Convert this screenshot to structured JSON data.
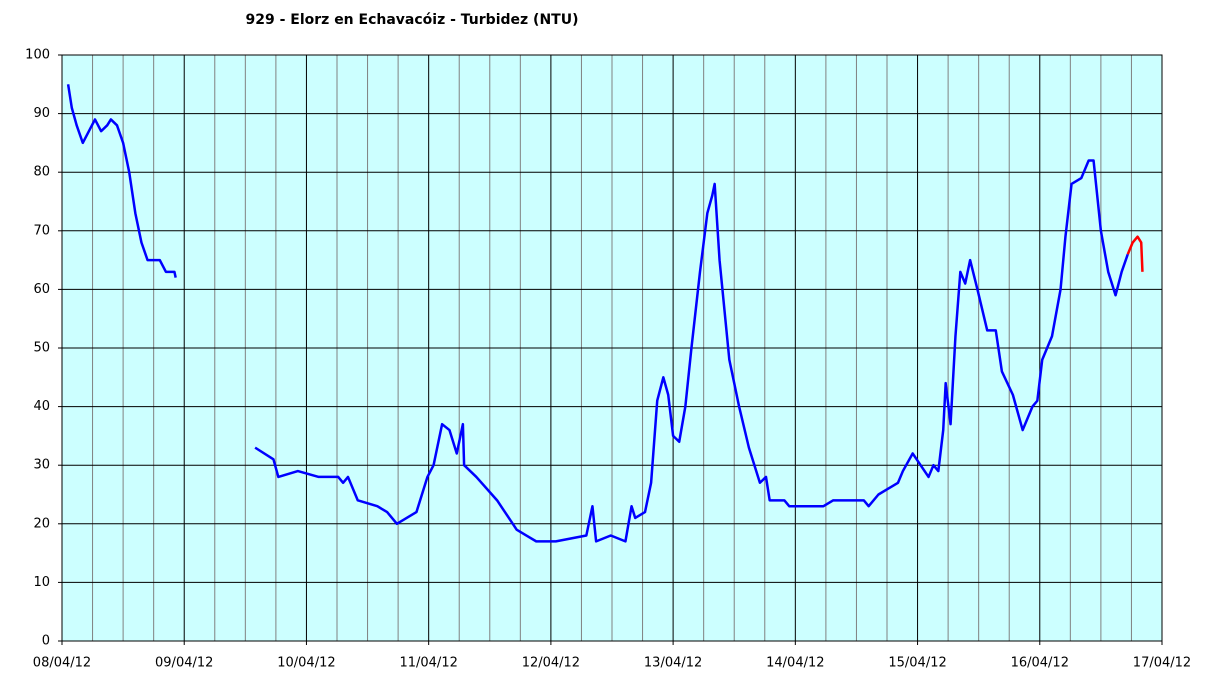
{
  "chart_data": {
    "type": "line",
    "title": "929 - Elorz en Echavacóiz - Turbidez (NTU)",
    "xlim": [
      0,
      9
    ],
    "xticks": [
      {
        "value": 0,
        "label": "08/04/12"
      },
      {
        "value": 1,
        "label": "09/04/12"
      },
      {
        "value": 2,
        "label": "10/04/12"
      },
      {
        "value": 3,
        "label": "11/04/12"
      },
      {
        "value": 4,
        "label": "12/04/12"
      },
      {
        "value": 5,
        "label": "13/04/12"
      },
      {
        "value": 6,
        "label": "14/04/12"
      },
      {
        "value": 7,
        "label": "15/04/12"
      },
      {
        "value": 8,
        "label": "16/04/12"
      },
      {
        "value": 9,
        "label": "17/04/12"
      }
    ],
    "ylim": [
      0,
      100
    ],
    "yticks": [
      0,
      10,
      20,
      30,
      40,
      50,
      60,
      70,
      80,
      90,
      100
    ],
    "grid": true,
    "background": "#ccffff",
    "series": [
      {
        "color": "#0000ff",
        "x": [
          0.05,
          0.08,
          0.12,
          0.17,
          0.22,
          0.27,
          0.32,
          0.37,
          0.4,
          0.45,
          0.5,
          0.55,
          0.6,
          0.65,
          0.7,
          0.8,
          0.85,
          0.92,
          0.93,
          1.2,
          1.58,
          1.73,
          1.77,
          1.93,
          2.1,
          2.26,
          2.3,
          2.34,
          2.42,
          2.58,
          2.66,
          2.74,
          2.82,
          2.9,
          2.99,
          3.04,
          3.11,
          3.17,
          3.23,
          3.28,
          3.29,
          3.39,
          3.56,
          3.72,
          3.8,
          3.88,
          4.04,
          4.29,
          4.34,
          4.37,
          4.49,
          4.61,
          4.66,
          4.69,
          4.77,
          4.82,
          4.87,
          4.92,
          4.96,
          5.0,
          5.05,
          5.1,
          5.15,
          5.22,
          5.28,
          5.32,
          5.34,
          5.38,
          5.46,
          5.54,
          5.62,
          5.71,
          5.76,
          5.79,
          5.91,
          5.95,
          6.23,
          6.31,
          6.56,
          6.6,
          6.68,
          6.84,
          6.88,
          6.96,
          7.09,
          7.13,
          7.17,
          7.21,
          7.23,
          7.27,
          7.31,
          7.35,
          7.39,
          7.43,
          7.49,
          7.57,
          7.64,
          7.69,
          7.78,
          7.86,
          7.94,
          7.98,
          8.02,
          8.1,
          8.17,
          8.21,
          8.26,
          8.34,
          8.4,
          8.44,
          8.5,
          8.56,
          8.62,
          8.67,
          8.72
        ],
        "values": [
          95,
          91,
          88,
          85,
          87,
          89,
          87,
          88,
          89,
          88,
          85,
          80,
          73,
          68,
          65,
          65,
          63,
          63,
          62,
          null,
          33,
          31,
          28,
          29,
          28,
          28,
          27,
          28,
          24,
          23,
          22,
          20,
          21,
          22,
          28,
          30,
          37,
          36,
          32,
          37,
          30,
          28,
          24,
          19,
          18,
          17,
          17,
          18,
          23,
          17,
          18,
          17,
          23,
          21,
          22,
          27,
          41,
          45,
          42,
          35,
          34,
          40,
          50,
          63,
          73,
          76,
          78,
          65,
          48,
          40,
          33,
          27,
          28,
          24,
          24,
          23,
          23,
          24,
          24,
          23,
          25,
          27,
          29,
          32,
          28,
          30,
          29,
          36,
          44,
          37,
          52,
          63,
          61,
          65,
          60,
          53,
          53,
          46,
          42,
          36,
          40,
          41,
          48,
          52,
          60,
          69,
          78,
          79,
          82,
          82,
          70,
          63,
          59,
          63,
          66
        ]
      },
      {
        "color": "#ff0000",
        "x": [
          8.72,
          8.76,
          8.8,
          8.83,
          8.84
        ],
        "values": [
          66,
          68,
          69,
          68,
          63
        ]
      }
    ]
  }
}
